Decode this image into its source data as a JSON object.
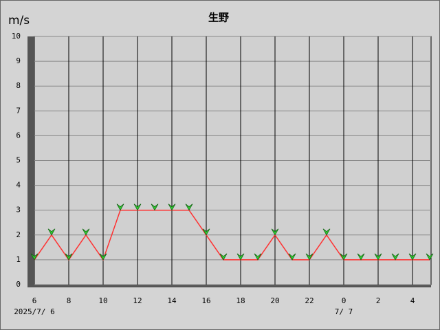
{
  "chart_data": {
    "type": "line",
    "title": "生野",
    "ylabel": "m/s",
    "categories": [
      "6",
      null,
      "8",
      null,
      "10",
      null,
      "12",
      null,
      "14",
      null,
      "16",
      null,
      "18",
      null,
      "20",
      null,
      "22",
      null,
      "0",
      null,
      "2",
      null,
      "4",
      null
    ],
    "date_labels": [
      {
        "index": 0,
        "label": "2025/7/ 6"
      },
      {
        "index": 18,
        "label": "7/ 7"
      }
    ],
    "series": [
      {
        "color": "#ff3030",
        "marker_color": "#33cc33",
        "values": [
          1,
          2,
          1,
          2,
          1,
          3,
          3,
          3,
          3,
          3,
          2,
          1,
          1,
          1,
          2,
          1,
          1,
          2,
          1,
          1,
          1,
          1,
          1,
          1
        ]
      }
    ],
    "ylim": [
      0,
      10
    ],
    "yticks": [
      0,
      1,
      2,
      3,
      4,
      5,
      6,
      7,
      8,
      9,
      10
    ],
    "grid": true
  }
}
